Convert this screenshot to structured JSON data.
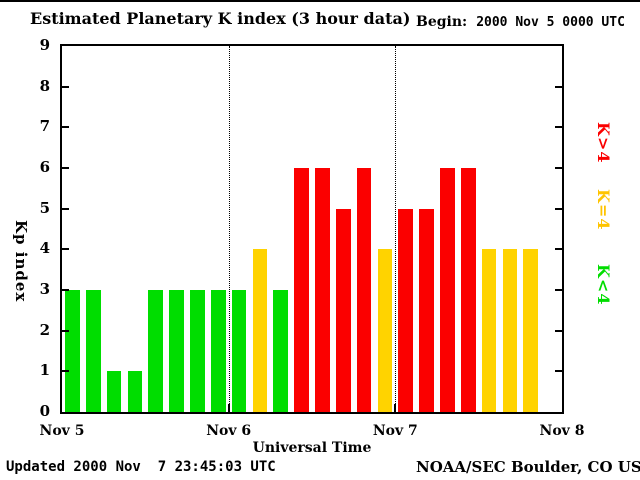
{
  "header": {
    "title": "Estimated Planetary K index (3 hour data)",
    "begin_label": "Begin:",
    "begin_value": "2000 Nov 5 0000 UTC"
  },
  "footer": {
    "updated": "Updated 2000 Nov  7 23:45:03 UTC",
    "source": "NOAA/SEC Boulder, CO USA"
  },
  "chart_data": {
    "type": "bar",
    "title": "Estimated Planetary K index (3 hour data)",
    "xlabel": "Universal Time",
    "ylabel": "Kp index",
    "ylim": [
      0,
      9
    ],
    "ytick_labels": [
      "0",
      "1",
      "2",
      "3",
      "4",
      "5",
      "6",
      "7",
      "8",
      "9"
    ],
    "xtick_labels": [
      "Nov 5",
      "Nov 6",
      "Nov 7",
      "Nov 8"
    ],
    "begin_utc": "2000 Nov 5 0000 UTC",
    "slots_per_day": 8,
    "days": 3,
    "grid": "dotted vertical lines at day boundaries",
    "values": [
      3,
      3,
      1,
      1,
      3,
      3,
      3,
      3,
      3,
      4,
      3,
      6,
      6,
      5,
      6,
      4,
      5,
      5,
      6,
      6,
      4,
      4,
      4
    ],
    "series": [
      {
        "name": "Nov 5",
        "values": [
          3,
          3,
          1,
          1,
          3,
          3,
          3,
          3
        ]
      },
      {
        "name": "Nov 6",
        "values": [
          3,
          4,
          3,
          6,
          6,
          5,
          6,
          4
        ]
      },
      {
        "name": "Nov 7",
        "values": [
          5,
          5,
          6,
          6,
          4,
          4,
          4
        ]
      }
    ],
    "colors": {
      "low": "#00dd00",
      "mid": "#ffd300",
      "high": "#fb0000"
    },
    "color_rule": "kp<4 green, kp=4 yellow, kp>4 red",
    "legend": [
      {
        "label": "K>4",
        "color": "#fb0000"
      },
      {
        "label": "K=4",
        "color": "#ffc400"
      },
      {
        "label": "K<4",
        "color": "#00dd00"
      }
    ],
    "legend_position": "right, rotated"
  }
}
